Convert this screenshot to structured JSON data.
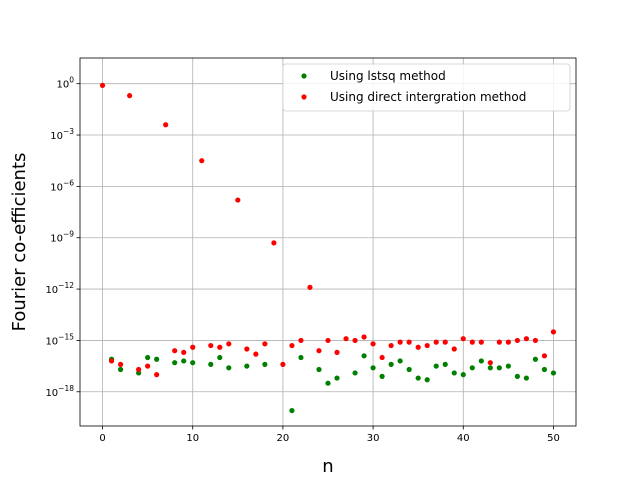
{
  "chart_data": {
    "type": "scatter",
    "title": "",
    "xlabel": "n",
    "ylabel": "Fourier co-efficients",
    "yscale": "log",
    "xlim": [
      -2.5,
      52.5
    ],
    "ylim_exp": [
      -20,
      1.5
    ],
    "grid": true,
    "legend_position": "top-right",
    "x_ticks": [
      0,
      10,
      20,
      30,
      40,
      50
    ],
    "y_ticks": [
      {
        "exp": 0,
        "base": "10",
        "sup": "0"
      },
      {
        "exp": -3,
        "base": "10",
        "sup": "−3"
      },
      {
        "exp": -6,
        "base": "10",
        "sup": "−6"
      },
      {
        "exp": -9,
        "base": "10",
        "sup": "−9"
      },
      {
        "exp": -12,
        "base": "10",
        "sup": "−12"
      },
      {
        "exp": -15,
        "base": "10",
        "sup": "−15"
      },
      {
        "exp": -18,
        "base": "10",
        "sup": "−18"
      }
    ],
    "series": [
      {
        "name": "Using lstsq method",
        "color": "#008000",
        "x": [
          1,
          2,
          4,
          5,
          6,
          8,
          9,
          10,
          12,
          13,
          14,
          16,
          18,
          21,
          22,
          24,
          25,
          26,
          28,
          29,
          30,
          31,
          32,
          33,
          34,
          35,
          36,
          37,
          38,
          39,
          40,
          41,
          42,
          43,
          44,
          45,
          46,
          47,
          48,
          49,
          50
        ],
        "log10y": [
          -16.1,
          -16.7,
          -16.9,
          -16.0,
          -16.1,
          -16.3,
          -16.2,
          -16.3,
          -16.4,
          -16.0,
          -16.6,
          -16.5,
          -16.4,
          -19.1,
          -16.0,
          -16.7,
          -17.5,
          -17.2,
          -16.9,
          -15.9,
          -16.6,
          -17.1,
          -16.4,
          -16.2,
          -16.7,
          -17.2,
          -17.3,
          -16.5,
          -16.4,
          -16.9,
          -17.0,
          -16.6,
          -16.2,
          -16.6,
          -16.6,
          -16.5,
          -17.1,
          -17.2,
          -16.1,
          -16.7,
          -16.9
        ]
      },
      {
        "name": "Using direct intergration method",
        "color": "#ff0000",
        "x": [
          0,
          1,
          2,
          3,
          4,
          5,
          6,
          7,
          8,
          9,
          10,
          11,
          12,
          13,
          14,
          15,
          16,
          17,
          18,
          19,
          20,
          21,
          22,
          23,
          24,
          25,
          26,
          27,
          28,
          29,
          30,
          31,
          32,
          33,
          34,
          35,
          36,
          37,
          38,
          39,
          40,
          41,
          42,
          43,
          44,
          45,
          46,
          47,
          48,
          49,
          50
        ],
        "log10y": [
          -0.1,
          -16.2,
          -16.4,
          -0.7,
          -16.7,
          -16.5,
          -17.0,
          -2.4,
          -15.6,
          -15.7,
          -15.4,
          -4.5,
          -15.3,
          -15.4,
          -15.2,
          -6.8,
          -15.5,
          -15.8,
          -15.2,
          -9.3,
          -16.4,
          -15.3,
          -15.0,
          -11.9,
          -15.6,
          -15.0,
          -15.7,
          -14.9,
          -15.0,
          -14.8,
          -15.2,
          -16.0,
          -15.3,
          -15.1,
          -15.1,
          -15.4,
          -15.3,
          -15.1,
          -15.1,
          -15.5,
          -14.9,
          -15.1,
          -15.1,
          -16.3,
          -15.1,
          -15.1,
          -15.0,
          -14.9,
          -15.0,
          -15.9,
          -14.5
        ]
      }
    ]
  }
}
